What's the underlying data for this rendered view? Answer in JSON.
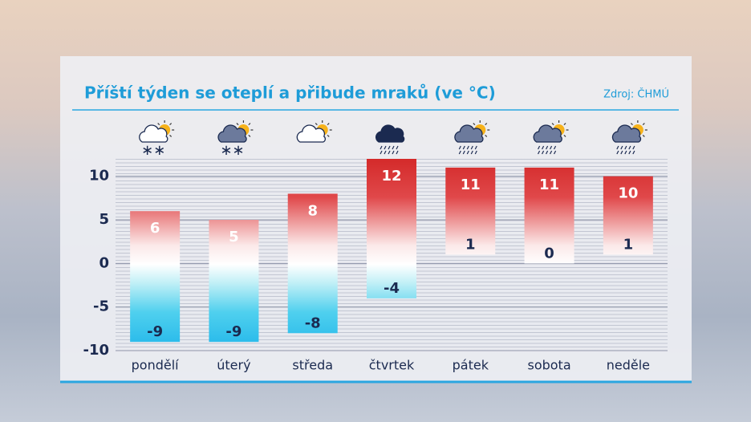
{
  "chart_data": {
    "type": "range-bar",
    "title": "Příští týden se oteplí a přibude mraků (ve °C)",
    "source": "Zdroj: ČHMÚ",
    "categories": [
      "pondělí",
      "úterý",
      "středa",
      "čtvrtek",
      "pátek",
      "sobota",
      "neděle"
    ],
    "low": [
      -9,
      -9,
      -8,
      -4,
      1,
      0,
      1
    ],
    "high": [
      6,
      5,
      8,
      12,
      11,
      11,
      10
    ],
    "ylim": [
      -10,
      12
    ],
    "yticks": [
      10,
      5,
      0,
      -5,
      -10
    ],
    "grid": true
  }
}
